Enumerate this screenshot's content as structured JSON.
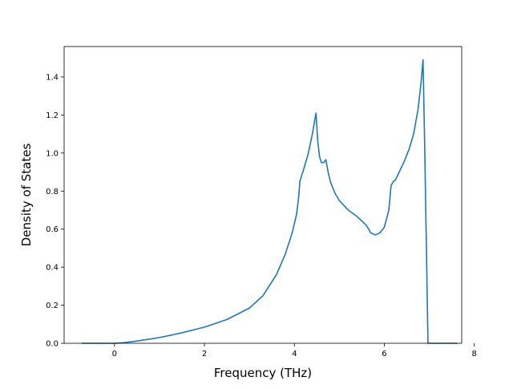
{
  "chart_data": {
    "type": "line",
    "title": "",
    "xlabel": "Frequency (THz)",
    "ylabel": "Density of States",
    "xlim": [
      -1.12,
      7.72
    ],
    "ylim": [
      0.0,
      1.56
    ],
    "xticks": [
      0,
      2,
      4,
      6,
      8
    ],
    "xtick_labels": [
      "0",
      "2",
      "4",
      "6",
      "8"
    ],
    "yticks": [
      0.0,
      0.2,
      0.4,
      0.6,
      0.8,
      1.0,
      1.2,
      1.4
    ],
    "ytick_labels": [
      "0.0",
      "0.2",
      "0.4",
      "0.6",
      "0.8",
      "1.0",
      "1.2",
      "1.4"
    ],
    "grid": false,
    "series": [
      {
        "color": "#1f77b4",
        "x": [
          -0.72,
          0.0,
          0.2,
          0.5,
          1.0,
          1.5,
          2.0,
          2.5,
          3.0,
          3.3,
          3.6,
          3.8,
          3.95,
          4.05,
          4.1,
          4.12,
          4.2,
          4.3,
          4.4,
          4.48,
          4.52,
          4.56,
          4.6,
          4.65,
          4.7,
          4.75,
          4.8,
          4.9,
          5.0,
          5.2,
          5.4,
          5.6,
          5.7,
          5.8,
          5.9,
          6.0,
          6.1,
          6.15,
          6.2,
          6.25,
          6.35,
          6.45,
          6.55,
          6.65,
          6.75,
          6.82,
          6.86,
          6.9,
          6.97,
          7.62
        ],
        "y": [
          0.0,
          0.0,
          0.003,
          0.012,
          0.03,
          0.055,
          0.085,
          0.125,
          0.185,
          0.25,
          0.36,
          0.47,
          0.58,
          0.68,
          0.78,
          0.85,
          0.91,
          0.99,
          1.1,
          1.21,
          1.06,
          0.98,
          0.95,
          0.95,
          0.965,
          0.9,
          0.85,
          0.79,
          0.75,
          0.7,
          0.665,
          0.62,
          0.58,
          0.57,
          0.58,
          0.61,
          0.7,
          0.83,
          0.85,
          0.86,
          0.91,
          0.96,
          1.02,
          1.1,
          1.23,
          1.38,
          1.49,
          1.0,
          0.0,
          0.0
        ]
      }
    ]
  }
}
